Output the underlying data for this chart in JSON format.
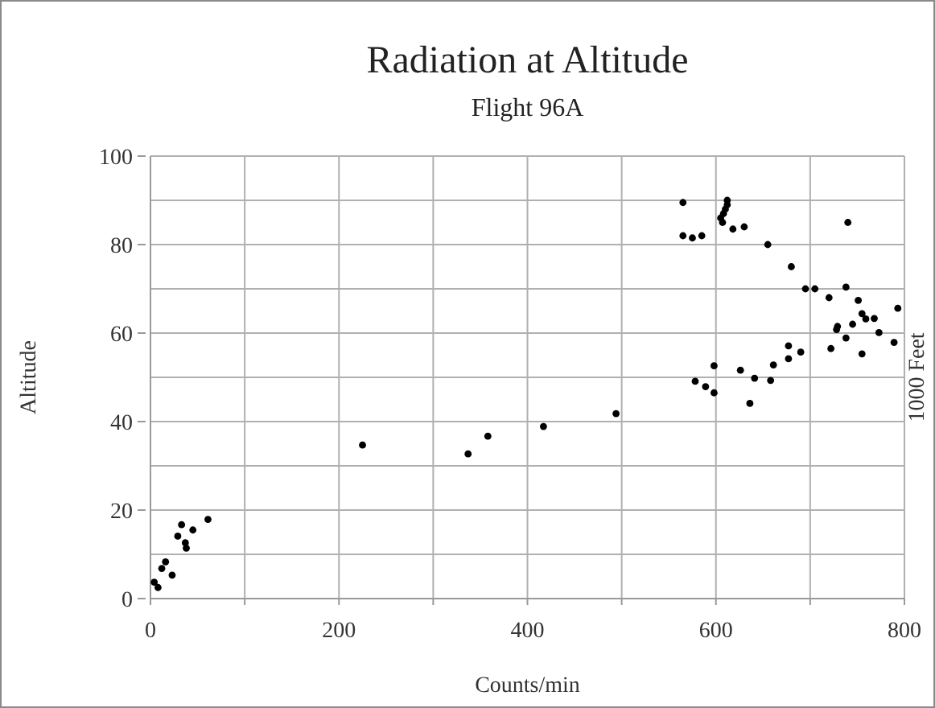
{
  "chart_data": {
    "type": "scatter",
    "title": "Radiation at Altitude",
    "subtitle": "Flight 96A",
    "xlabel": "Counts/min",
    "ylabel": "Altitude",
    "y2label": "1000 Feet",
    "xlim": [
      0,
      800
    ],
    "ylim": [
      0,
      100
    ],
    "xticks": [
      0,
      {
        "value": 100,
        "label": null
      },
      200,
      {
        "value": 300,
        "label": null
      },
      400,
      {
        "value": 500,
        "label": null
      },
      600,
      {
        "value": 700,
        "label": null
      },
      800
    ],
    "yticks": [
      0,
      {
        "value": 10,
        "label": null
      },
      20,
      {
        "value": 30,
        "label": null
      },
      40,
      {
        "value": 50,
        "label": null
      },
      60,
      {
        "value": 70,
        "label": null
      },
      80,
      {
        "value": 90,
        "label": null
      },
      100
    ],
    "grid": true,
    "marker": "circle",
    "series": [
      {
        "color": "#000000",
        "x": [
          4,
          8,
          12,
          16,
          23,
          29,
          33,
          37,
          38,
          45,
          61,
          225,
          337,
          358,
          417,
          494,
          578,
          589,
          598,
          598,
          626,
          636,
          641,
          658,
          661,
          677,
          677,
          690,
          722,
          728,
          738,
          751,
          755,
          759,
          773,
          793,
          789,
          755,
          738,
          729,
          768,
          745,
          565,
          565,
          575,
          585,
          605,
          607,
          608,
          610,
          612,
          612,
          618,
          630,
          655,
          680,
          695,
          705,
          740,
          720
        ],
        "values": [
          3.7,
          2.5,
          6.8,
          8.3,
          5.3,
          14.1,
          16.7,
          12.6,
          11.4,
          15.5,
          17.9,
          34.7,
          32.7,
          36.7,
          38.9,
          41.8,
          49.1,
          47.9,
          46.5,
          52.6,
          51.6,
          44.1,
          49.8,
          49.3,
          52.8,
          57.1,
          54.2,
          55.7,
          56.5,
          60.8,
          70.4,
          67.4,
          64.4,
          63.2,
          60.1,
          65.6,
          57.9,
          55.3,
          58.9,
          61.5,
          63.3,
          62,
          89.5,
          82,
          81.5,
          82,
          86,
          85,
          87,
          88,
          89,
          90,
          83.5,
          84,
          80,
          75,
          70,
          70,
          85,
          68
        ]
      }
    ]
  }
}
